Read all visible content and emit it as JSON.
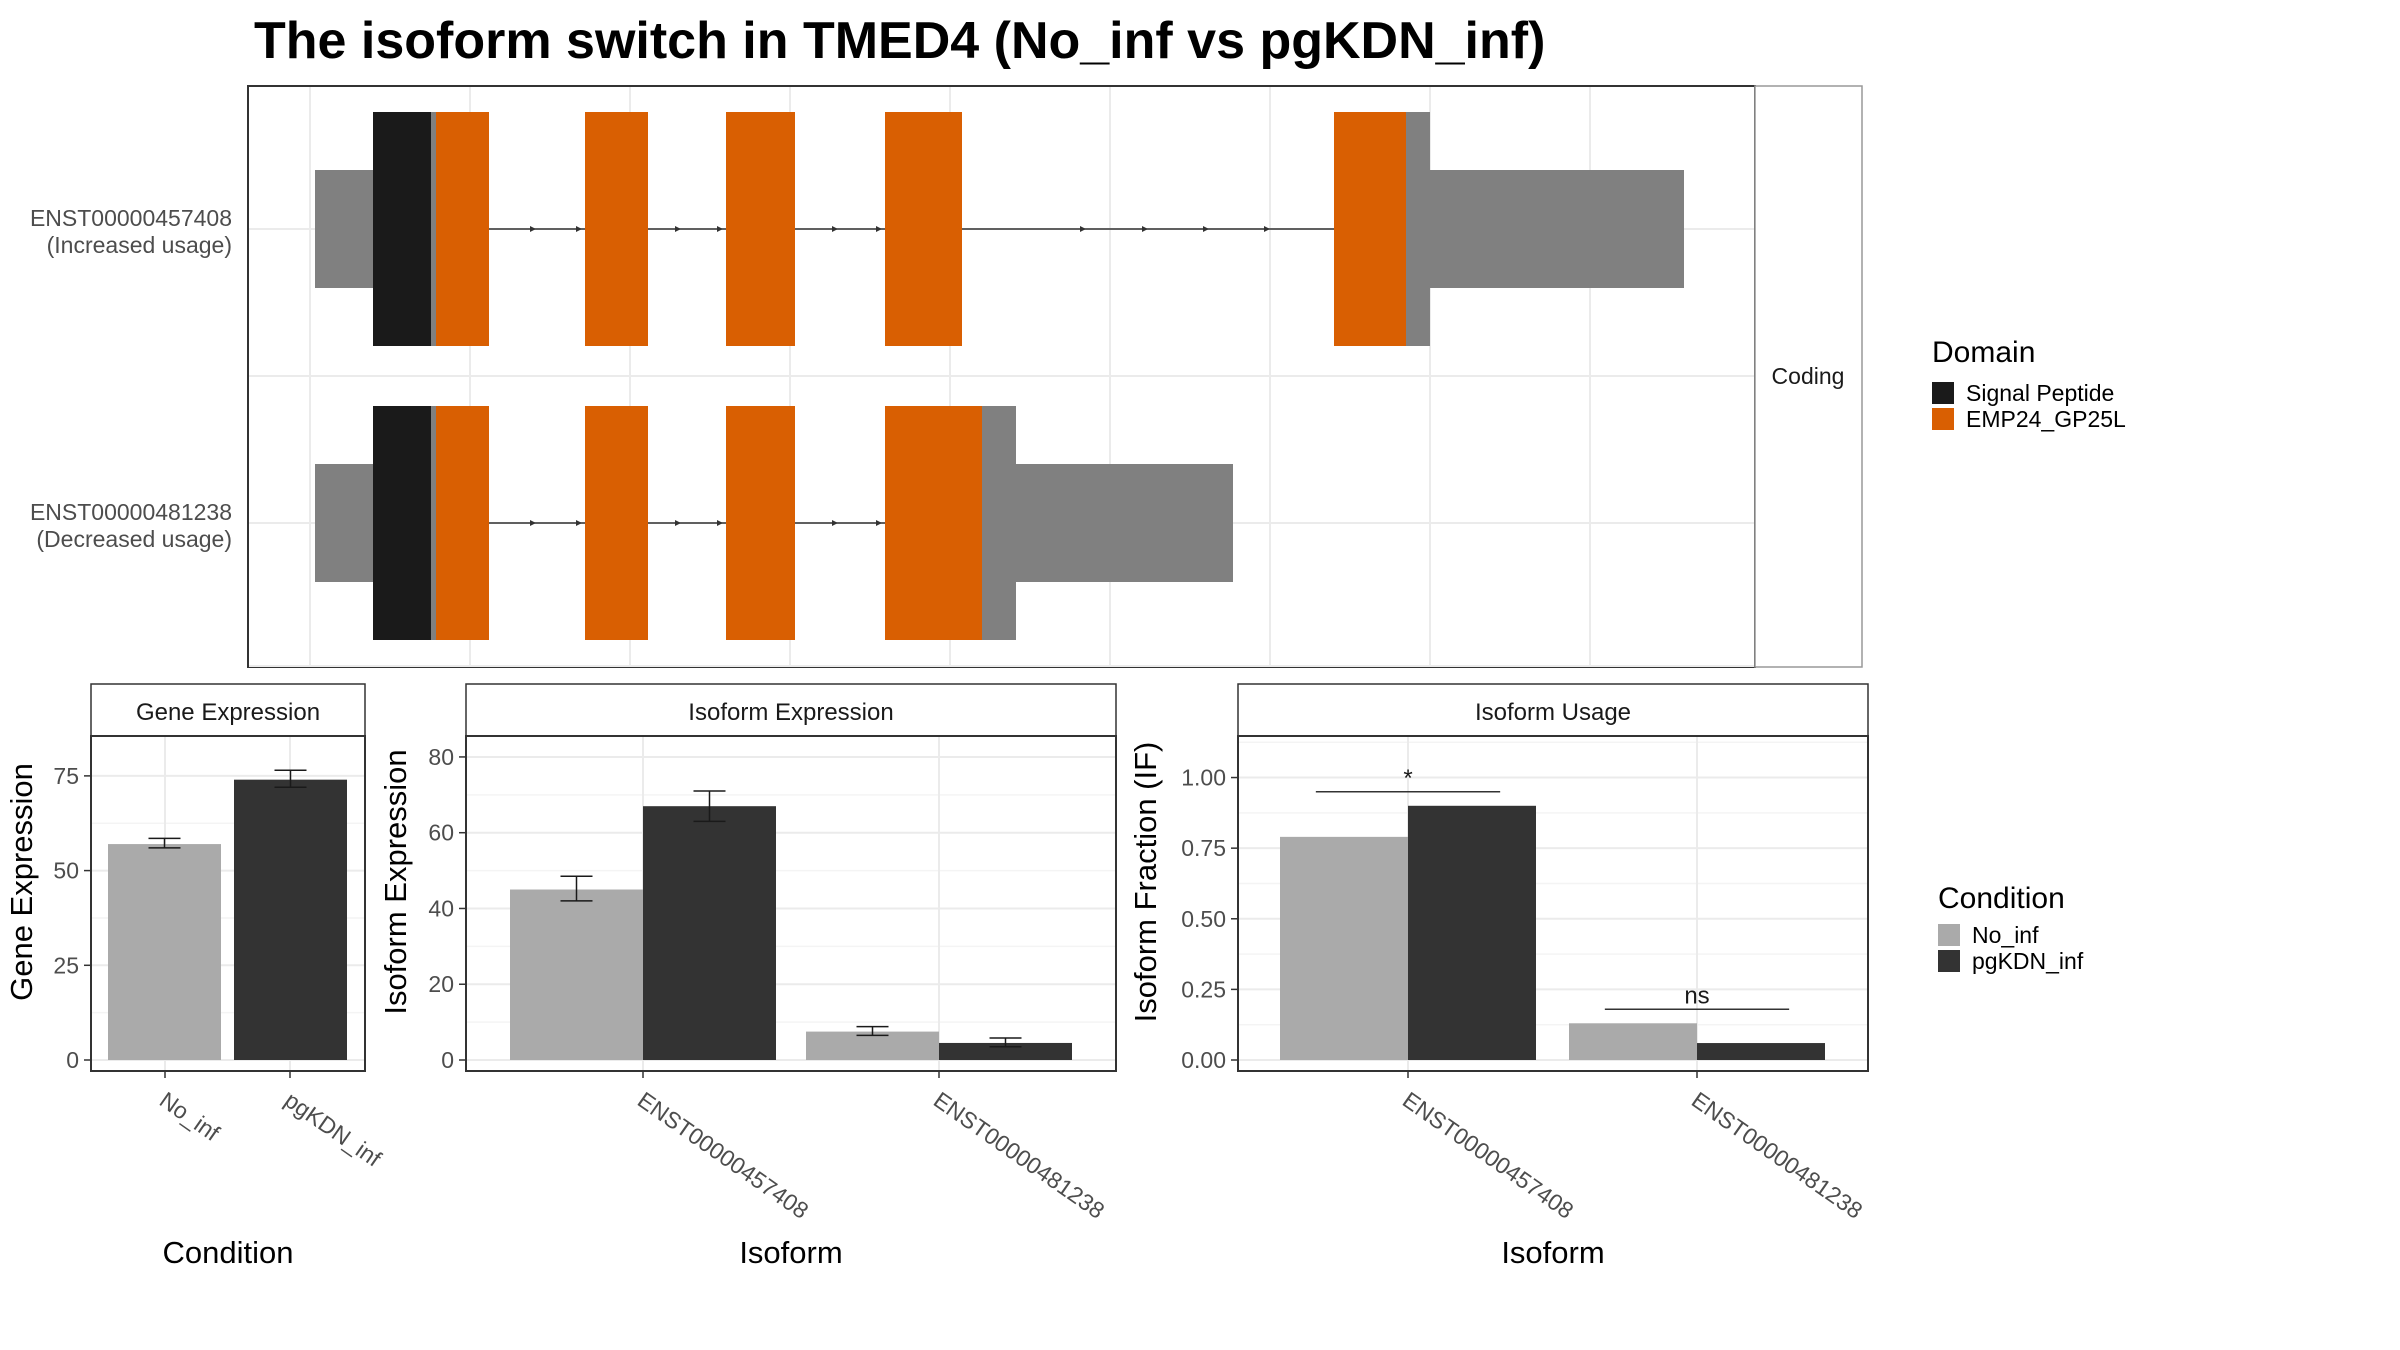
{
  "title": "The isoform switch in TMED4 (No_inf vs pgKDN_inf)",
  "colors": {
    "signal_peptide": "#1a1a1a",
    "domain": "#d95f02",
    "utr": "#808080",
    "no_inf": "#aaaaaa",
    "pgkdn_inf": "#333333",
    "grid": "#ebebeb",
    "strip_bg": "#ffffff"
  },
  "structure": {
    "strip_label": "Coding",
    "transcripts": [
      {
        "id": "ENST00000457408",
        "note": "(Increased usage)",
        "utr5": [
          0.0,
          0.04
        ],
        "utr3_tail": [
          0.04,
          1.0
        ]
      },
      {
        "id": "ENST00000481238",
        "note": "(Decreased usage)"
      }
    ]
  },
  "legends": {
    "domain": {
      "title": "Domain",
      "items": [
        "Signal Peptide",
        "EMP24_GP25L"
      ]
    },
    "condition": {
      "title": "Condition",
      "items": [
        "No_inf",
        "pgKDN_inf"
      ]
    }
  },
  "chart_data": [
    {
      "type": "bar",
      "panel": "Gene Expression",
      "xlabel": "Condition",
      "ylabel": "Gene Expression",
      "categories": [
        "No_inf",
        "pgKDN_inf"
      ],
      "values": [
        57,
        74
      ],
      "error_bars": [
        [
          56,
          58.5
        ],
        [
          72,
          76.5
        ]
      ],
      "ylim": [
        0,
        85
      ],
      "yticks": [
        0,
        25,
        50,
        75
      ]
    },
    {
      "type": "bar",
      "panel": "Isoform Expression",
      "xlabel": "Isoform",
      "ylabel": "Isoform Expression",
      "categories": [
        "ENST00000457408",
        "ENST00000481238"
      ],
      "series": [
        {
          "name": "No_inf",
          "values": [
            45,
            7.5
          ],
          "error_bars": [
            [
              42,
              48.5
            ],
            [
              6.5,
              8.8
            ]
          ]
        },
        {
          "name": "pgKDN_inf",
          "values": [
            67,
            4.5
          ],
          "error_bars": [
            [
              63,
              71
            ],
            [
              3.5,
              5.8
            ]
          ]
        }
      ],
      "ylim": [
        0,
        85
      ],
      "yticks": [
        0,
        20,
        40,
        60,
        80
      ]
    },
    {
      "type": "bar",
      "panel": "Isoform Usage",
      "xlabel": "Isoform",
      "ylabel": "Isoform Fraction (IF)",
      "categories": [
        "ENST00000457408",
        "ENST00000481238"
      ],
      "series": [
        {
          "name": "No_inf",
          "values": [
            0.79,
            0.13
          ]
        },
        {
          "name": "pgKDN_inf",
          "values": [
            0.9,
            0.06
          ]
        }
      ],
      "significance": [
        "*",
        "ns"
      ],
      "ylim": [
        0,
        1.14
      ],
      "yticks": [
        0.0,
        0.25,
        0.5,
        0.75,
        1.0
      ],
      "ytick_labels": [
        "0.00",
        "0.25",
        "0.50",
        "0.75",
        "1.00"
      ]
    }
  ]
}
